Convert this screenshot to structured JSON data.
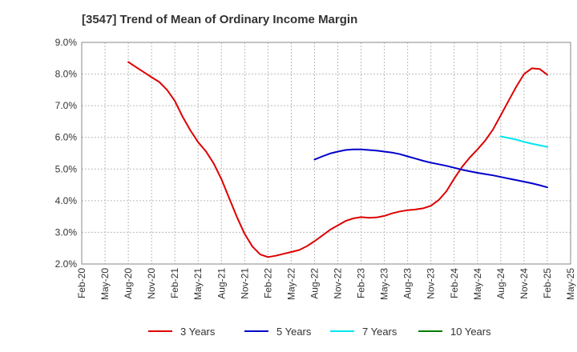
{
  "chart_data": {
    "type": "line",
    "title": "[3547]  Trend of Mean of Ordinary Income Margin",
    "y_unit": "%",
    "ylim": [
      2.0,
      9.0
    ],
    "y_ticks": [
      "9.0%",
      "8.0%",
      "7.0%",
      "6.0%",
      "5.0%",
      "4.0%",
      "3.0%",
      "2.0%"
    ],
    "x_ticks": [
      "Feb-20",
      "May-20",
      "Aug-20",
      "Nov-20",
      "Feb-21",
      "May-21",
      "Aug-21",
      "Nov-21",
      "Feb-22",
      "May-22",
      "Aug-22",
      "Nov-22",
      "Feb-23",
      "May-23",
      "Aug-23",
      "Nov-23",
      "Feb-24",
      "May-24",
      "Aug-24",
      "Nov-24",
      "Feb-25",
      "May-25"
    ],
    "grid": true,
    "legend_position": "bottom",
    "series": [
      {
        "name": "3 Years",
        "color": "#dd0000",
        "points": [
          [
            "Aug-20",
            8.38
          ],
          [
            "Sep-20",
            8.22
          ],
          [
            "Oct-20",
            8.06
          ],
          [
            "Nov-20",
            7.9
          ],
          [
            "Dec-20",
            7.75
          ],
          [
            "Jan-21",
            7.5
          ],
          [
            "Feb-21",
            7.15
          ],
          [
            "Mar-21",
            6.65
          ],
          [
            "Apr-21",
            6.22
          ],
          [
            "May-21",
            5.85
          ],
          [
            "Jun-21",
            5.56
          ],
          [
            "Jul-21",
            5.18
          ],
          [
            "Aug-21",
            4.68
          ],
          [
            "Sep-21",
            4.08
          ],
          [
            "Oct-21",
            3.48
          ],
          [
            "Nov-21",
            2.95
          ],
          [
            "Dec-21",
            2.55
          ],
          [
            "Jan-22",
            2.3
          ],
          [
            "Feb-22",
            2.22
          ],
          [
            "Mar-22",
            2.26
          ],
          [
            "Apr-22",
            2.32
          ],
          [
            "May-22",
            2.38
          ],
          [
            "Jun-22",
            2.44
          ],
          [
            "Jul-22",
            2.56
          ],
          [
            "Aug-22",
            2.72
          ],
          [
            "Sep-22",
            2.9
          ],
          [
            "Oct-22",
            3.08
          ],
          [
            "Nov-22",
            3.22
          ],
          [
            "Dec-22",
            3.36
          ],
          [
            "Jan-23",
            3.44
          ],
          [
            "Feb-23",
            3.48
          ],
          [
            "Mar-23",
            3.46
          ],
          [
            "Apr-23",
            3.47
          ],
          [
            "May-23",
            3.52
          ],
          [
            "Jun-23",
            3.6
          ],
          [
            "Jul-23",
            3.66
          ],
          [
            "Aug-23",
            3.7
          ],
          [
            "Sep-23",
            3.72
          ],
          [
            "Oct-23",
            3.76
          ],
          [
            "Nov-23",
            3.84
          ],
          [
            "Dec-23",
            4.02
          ],
          [
            "Jan-24",
            4.3
          ],
          [
            "Feb-24",
            4.7
          ],
          [
            "Mar-24",
            5.06
          ],
          [
            "Apr-24",
            5.36
          ],
          [
            "May-24",
            5.62
          ],
          [
            "Jun-24",
            5.9
          ],
          [
            "Jul-24",
            6.25
          ],
          [
            "Aug-24",
            6.7
          ],
          [
            "Sep-24",
            7.15
          ],
          [
            "Oct-24",
            7.6
          ],
          [
            "Nov-24",
            8.0
          ],
          [
            "Dec-24",
            8.18
          ],
          [
            "Jan-25",
            8.16
          ],
          [
            "Feb-25",
            7.98
          ]
        ]
      },
      {
        "name": "5 Years",
        "color": "#0000cc",
        "points": [
          [
            "Aug-22",
            5.3
          ],
          [
            "Sep-22",
            5.4
          ],
          [
            "Oct-22",
            5.49
          ],
          [
            "Nov-22",
            5.55
          ],
          [
            "Dec-22",
            5.6
          ],
          [
            "Jan-23",
            5.62
          ],
          [
            "Feb-23",
            5.62
          ],
          [
            "Mar-23",
            5.6
          ],
          [
            "Apr-23",
            5.58
          ],
          [
            "May-23",
            5.55
          ],
          [
            "Jun-23",
            5.52
          ],
          [
            "Jul-23",
            5.47
          ],
          [
            "Aug-23",
            5.4
          ],
          [
            "Sep-23",
            5.33
          ],
          [
            "Oct-23",
            5.26
          ],
          [
            "Nov-23",
            5.2
          ],
          [
            "Dec-23",
            5.15
          ],
          [
            "Jan-24",
            5.1
          ],
          [
            "Feb-24",
            5.04
          ],
          [
            "Mar-24",
            4.98
          ],
          [
            "Apr-24",
            4.93
          ],
          [
            "May-24",
            4.88
          ],
          [
            "Jun-24",
            4.84
          ],
          [
            "Jul-24",
            4.8
          ],
          [
            "Aug-24",
            4.75
          ],
          [
            "Sep-24",
            4.7
          ],
          [
            "Oct-24",
            4.65
          ],
          [
            "Nov-24",
            4.6
          ],
          [
            "Dec-24",
            4.55
          ],
          [
            "Jan-25",
            4.49
          ],
          [
            "Feb-25",
            4.42
          ]
        ]
      },
      {
        "name": "7 Years",
        "color": "#00e5ee",
        "points": [
          [
            "Aug-24",
            6.03
          ],
          [
            "Sep-24",
            5.98
          ],
          [
            "Oct-24",
            5.93
          ],
          [
            "Nov-24",
            5.86
          ],
          [
            "Dec-24",
            5.8
          ],
          [
            "Jan-25",
            5.75
          ],
          [
            "Feb-25",
            5.7
          ]
        ]
      },
      {
        "name": "10 Years",
        "color": "#008000",
        "points": []
      }
    ]
  }
}
